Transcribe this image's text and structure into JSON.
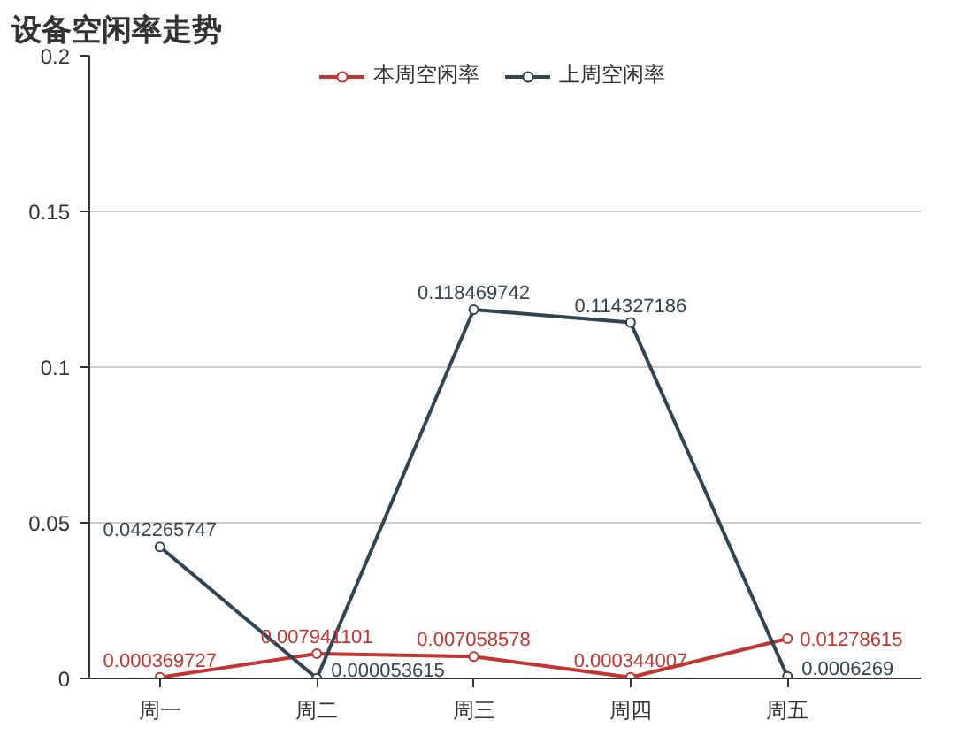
{
  "chart_data": {
    "type": "line",
    "title": "设备空闲率走势",
    "categories": [
      "周一",
      "周二",
      "周三",
      "周四",
      "周五"
    ],
    "series": [
      {
        "name": "本周空闲率",
        "color": "#c23531",
        "values": [
          0.000369727,
          0.007941101,
          0.007058578,
          0.000344007,
          0.01278615
        ],
        "value_labels": [
          "0.000369727",
          "0.007941101",
          "0.007058578",
          "0.000344007",
          "0.01278615"
        ]
      },
      {
        "name": "上周空闲率",
        "color": "#2f4554",
        "values": [
          0.042265747,
          5.3615e-05,
          0.118469742,
          0.114327186,
          0.0006269
        ],
        "value_labels": [
          "0.042265747",
          "0.000053615",
          "0.118469742",
          "0.114327186",
          "0.0006269"
        ]
      }
    ],
    "ylim": [
      0,
      0.2
    ],
    "yticks": [
      0,
      0.05,
      0.1,
      0.15,
      0.2
    ],
    "grid": "y",
    "legend": "top",
    "marker": "circle"
  }
}
